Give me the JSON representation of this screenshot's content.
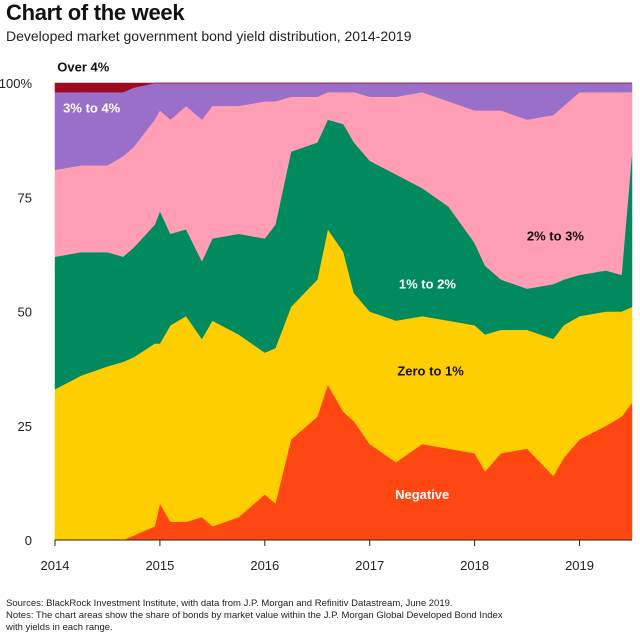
{
  "header": {
    "title": "Chart of the week",
    "subtitle": "Developed market government bond yield distribution, 2014-2019"
  },
  "footer": {
    "sources": "Sources: BlackRock Investment Institute, with data from J.P. Morgan and Refinitiv Datastream, June 2019.",
    "notes_line1": "Notes: The chart areas show the share of bonds by market value within the J.P. Morgan Global Developed Bond Index",
    "notes_line2": "with yields in each range."
  },
  "colors": {
    "negative": "#ff4713",
    "zero_to_1": "#ffce00",
    "one_to_2": "#008a5e",
    "two_to_3": "#ff9eb5",
    "three_to_4": "#9a6fca",
    "over_4": "#9e0a1e"
  },
  "chart_data": {
    "type": "area",
    "stacked": true,
    "xlim": [
      2014,
      2019.5
    ],
    "ylim": [
      0,
      100
    ],
    "x_ticks": [
      {
        "value": 2014,
        "label": "2014"
      },
      {
        "value": 2015,
        "label": "2015"
      },
      {
        "value": 2016,
        "label": "2016"
      },
      {
        "value": 2017,
        "label": "2017"
      },
      {
        "value": 2018,
        "label": "2018"
      },
      {
        "value": 2019,
        "label": "2019"
      }
    ],
    "y_ticks": [
      {
        "value": 0,
        "label": "0"
      },
      {
        "value": 25,
        "label": "25"
      },
      {
        "value": 50,
        "label": "50"
      },
      {
        "value": 75,
        "label": "75"
      },
      {
        "value": 100,
        "label": "100%"
      }
    ],
    "x": [
      2014.0,
      2014.25,
      2014.5,
      2014.65,
      2014.75,
      2014.95,
      2015.0,
      2015.1,
      2015.25,
      2015.4,
      2015.5,
      2015.75,
      2016.0,
      2016.1,
      2016.25,
      2016.5,
      2016.6,
      2016.75,
      2016.85,
      2017.0,
      2017.25,
      2017.5,
      2017.75,
      2018.0,
      2018.1,
      2018.25,
      2018.5,
      2018.75,
      2018.85,
      2019.0,
      2019.25,
      2019.4,
      2019.5
    ],
    "series": [
      {
        "name": "Negative",
        "key": "negative",
        "values": [
          0,
          0,
          0,
          0,
          1,
          3,
          8,
          4,
          4,
          5,
          3,
          5,
          10,
          8,
          22,
          27,
          34,
          28,
          26,
          21,
          17,
          21,
          20,
          19,
          15,
          19,
          20,
          14,
          18,
          22,
          25,
          27,
          30
        ]
      },
      {
        "name": "Zero to 1%",
        "key": "zero_to_1",
        "values": [
          33,
          36,
          38,
          39,
          39,
          40,
          35,
          43,
          45,
          39,
          45,
          40,
          31,
          34,
          29,
          30,
          34,
          35,
          28,
          29,
          31,
          28,
          28,
          28,
          30,
          27,
          26,
          30,
          29,
          27,
          25,
          23,
          21
        ]
      },
      {
        "name": "1% to 2%",
        "key": "one_to_2",
        "values": [
          29,
          27,
          25,
          23,
          24,
          26,
          29,
          20,
          19,
          17,
          18,
          22,
          25,
          27,
          34,
          30,
          24,
          28,
          33,
          33,
          32,
          28,
          25,
          18,
          15,
          11,
          9,
          12,
          10,
          9,
          9,
          8,
          34
        ]
      },
      {
        "name": "2% to 3%",
        "key": "two_to_3",
        "values": [
          19,
          19,
          19,
          22,
          22,
          23,
          22,
          25,
          27,
          31,
          29,
          28,
          30,
          27,
          12,
          10,
          6,
          7,
          11,
          14,
          17,
          21,
          23,
          29,
          34,
          37,
          37,
          37,
          38,
          40,
          39,
          40,
          13
        ]
      },
      {
        "name": "3% to 4%",
        "key": "three_to_4",
        "values": [
          17,
          16,
          16,
          14,
          13,
          8,
          6,
          8,
          5,
          8,
          5,
          5,
          4,
          4,
          3,
          3,
          2,
          2,
          2,
          3,
          3,
          2,
          4,
          6,
          6,
          6,
          8,
          7,
          5,
          2,
          2,
          2,
          2
        ]
      },
      {
        "name": "Over 4%",
        "key": "over_4",
        "values": [
          2,
          2,
          2,
          2,
          1,
          0,
          0,
          0,
          0,
          0,
          0,
          0,
          0,
          0,
          0,
          0,
          0,
          0,
          0,
          0,
          0,
          0,
          0,
          0,
          0,
          0,
          0,
          0,
          0,
          0,
          0,
          0,
          0
        ]
      }
    ],
    "annotations": [
      {
        "key": "negative",
        "text": "Negative",
        "x": 2017.5,
        "y": 9,
        "color": "#ffffff"
      },
      {
        "key": "zero_to_1",
        "text": "Zero to 1%",
        "x": 2017.58,
        "y": 36,
        "color": "#111111"
      },
      {
        "key": "one_to_2",
        "text": "1% to  2%",
        "x": 2017.55,
        "y": 55,
        "color": "#ffffff"
      },
      {
        "key": "two_to_3",
        "text": "2% to 3%",
        "x": 2018.77,
        "y": 65.5,
        "color": "#111111"
      },
      {
        "key": "three_to_4",
        "text": "3% to 4%",
        "x": 2014.35,
        "y": 93.5,
        "color": "#ffffff"
      },
      {
        "key": "over_4",
        "text": "Over 4%",
        "x": 2014.27,
        "y": 102.5,
        "color": "#111111"
      }
    ]
  }
}
